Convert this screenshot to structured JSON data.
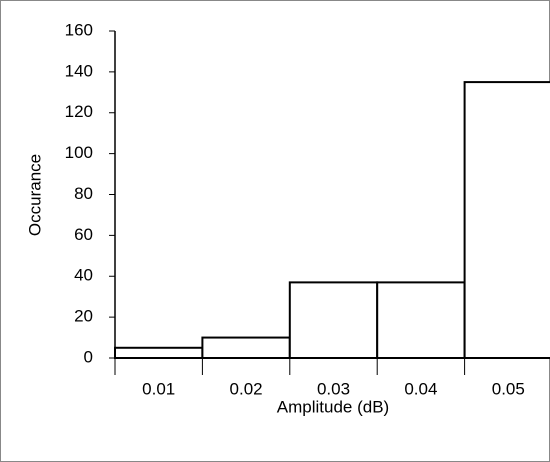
{
  "chart_data": {
    "type": "bar",
    "x_label": "Amplitude (dB)",
    "y_label": "Occurance",
    "categories": [
      "0.01",
      "0.02",
      "0.03",
      "0.04",
      "0.05"
    ],
    "values": [
      5,
      10,
      37,
      37,
      135
    ],
    "color": "#ffffff",
    "edgecolor": "#000000",
    "ylim": [
      0,
      160
    ],
    "yticks": [
      0,
      20,
      40,
      60,
      80,
      100,
      120,
      140,
      160
    ],
    "grid": false
  }
}
